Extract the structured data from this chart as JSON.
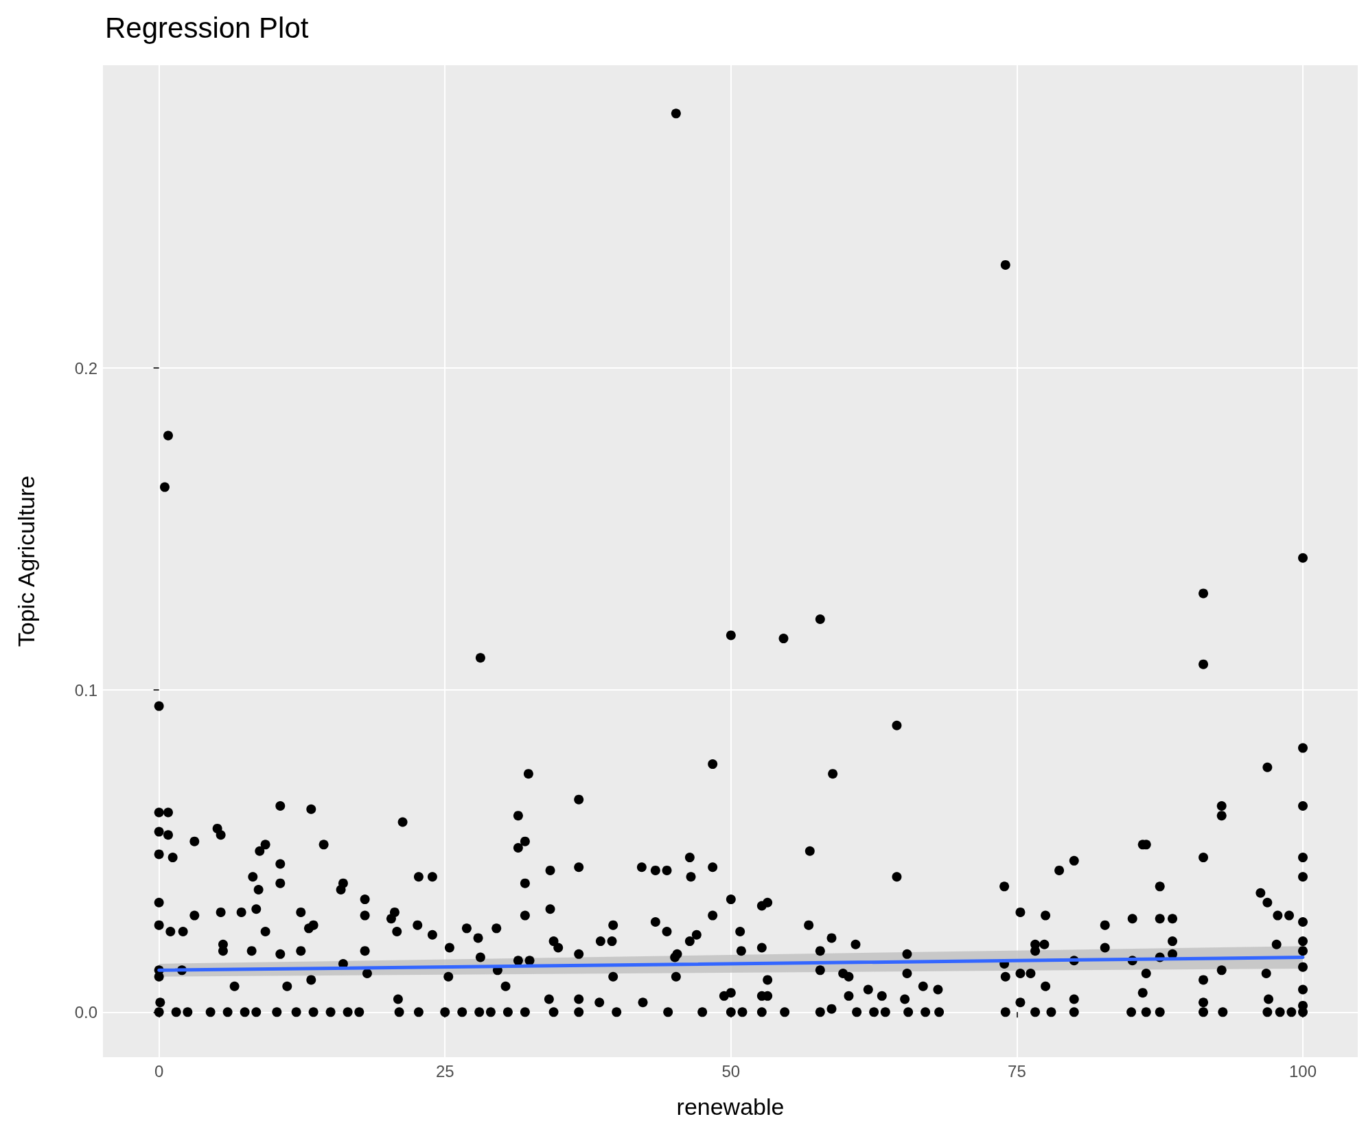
{
  "chart_data": {
    "type": "scatter",
    "title": "Regression Plot",
    "xlabel": "renewable",
    "ylabel": "Topic Agriculture",
    "xlim": [
      -4.9,
      104.8
    ],
    "ylim": [
      -0.014,
      0.294
    ],
    "xticks": [
      0,
      25,
      50,
      75,
      100
    ],
    "yticks": [
      {
        "value": 0,
        "label": "0.0"
      },
      0.1,
      0.2
    ],
    "grid": true,
    "marker": "circle",
    "series": [
      {
        "color": "#000000",
        "x": [
          45.2,
          74.0,
          0.8,
          0.5,
          100,
          57.8,
          91.3,
          50.0,
          54.6,
          28.1,
          91.3,
          0,
          64.5,
          100,
          48.4,
          96.9,
          58.9,
          32.3,
          36.7,
          10.6,
          13.3,
          92.9,
          100,
          0,
          0.8,
          31.4,
          92.9,
          21.3,
          5.1,
          5.4,
          0,
          0.8,
          3.1,
          9.3,
          8.8,
          14.4,
          32.0,
          31.4,
          86.0,
          86.3,
          56.9,
          0,
          1.2,
          46.4,
          91.3,
          100,
          80,
          10.6,
          36.7,
          48.4,
          42.2,
          43.4,
          44.4,
          34.2,
          78.7,
          22.7,
          23.9,
          46.5,
          64.5,
          100,
          8.2,
          10.6,
          16.1,
          15.9,
          32.0,
          73.9,
          87.5,
          8.7,
          96.3,
          18.0,
          50.0,
          53.2,
          52.7,
          96.9,
          0,
          12.4,
          34.2,
          75.3,
          3.1,
          5.4,
          7.2,
          8.5,
          32.0,
          48.4,
          77.5,
          85.1,
          87.5,
          88.6,
          97.8,
          98.8,
          100,
          20.6,
          18,
          20.3,
          43.4,
          13.5,
          13.1,
          22.6,
          26.9,
          29.5,
          39.7,
          56.8,
          82.7,
          0,
          1.0,
          9.3,
          20.8,
          23.9,
          44.4,
          50.8,
          2.1,
          47.0,
          46.4,
          38.6,
          39.6,
          27.9,
          58.8,
          60.9,
          88.6,
          77.4,
          82.7,
          76.6,
          76.6,
          97.7,
          100,
          52.7,
          34.5,
          34.9,
          25.4,
          5.6,
          5.6,
          8.1,
          12.4,
          18.0,
          45.3,
          45.1,
          50.9,
          57.8,
          65.4,
          88.6,
          100,
          87.5,
          36.7,
          28.1,
          10.6,
          80,
          85.1,
          73.9,
          0,
          0,
          2.0,
          16.1,
          31.4,
          32.4,
          18.2,
          25.3,
          29.6,
          39.7,
          45.2,
          57.8,
          59.8,
          60.3,
          65.4,
          74.0,
          75.3,
          76.2,
          86.3,
          91.3,
          92.9,
          96.8,
          100,
          13.3,
          53.2,
          66.8,
          77.5,
          6.6,
          11.2,
          30.3,
          86.0,
          68.1,
          100,
          49.4,
          50.0,
          52.7,
          53.2,
          60.3,
          62.0,
          63.2,
          42.3,
          34.1,
          0.1,
          20.9,
          36.7,
          65.2,
          75.3,
          91.3,
          80,
          97.0,
          38.5,
          58.8,
          100,
          0,
          1.5,
          2.5,
          4.5,
          6.0,
          7.5,
          8.5,
          10.3,
          12.0,
          13.5,
          15.0,
          16.5,
          17.5,
          21.0,
          22.7,
          25.0,
          26.5,
          28.0,
          29.0,
          30.5,
          32.0,
          34.5,
          36.7,
          40.0,
          44.5,
          47.5,
          50.0,
          51.0,
          52.7,
          54.7,
          57.8,
          61.0,
          62.5,
          63.5,
          65.5,
          67.0,
          68.2,
          74.0,
          76.6,
          78.0,
          80.0,
          85.0,
          86.3,
          87.5,
          91.3,
          93.0,
          96.9,
          98.0,
          99.0,
          100
        ],
        "values": [
          0.279,
          0.232,
          0.179,
          0.163,
          0.141,
          0.122,
          0.13,
          0.117,
          0.116,
          0.11,
          0.108,
          0.095,
          0.089,
          0.082,
          0.077,
          0.076,
          0.074,
          0.074,
          0.066,
          0.064,
          0.063,
          0.064,
          0.064,
          0.062,
          0.062,
          0.061,
          0.061,
          0.059,
          0.057,
          0.055,
          0.056,
          0.055,
          0.053,
          0.052,
          0.05,
          0.052,
          0.053,
          0.051,
          0.052,
          0.052,
          0.05,
          0.049,
          0.048,
          0.048,
          0.048,
          0.048,
          0.047,
          0.046,
          0.045,
          0.045,
          0.045,
          0.044,
          0.044,
          0.044,
          0.044,
          0.042,
          0.042,
          0.042,
          0.042,
          0.042,
          0.042,
          0.04,
          0.04,
          0.038,
          0.04,
          0.039,
          0.039,
          0.038,
          0.037,
          0.035,
          0.035,
          0.034,
          0.033,
          0.034,
          0.034,
          0.031,
          0.032,
          0.031,
          0.03,
          0.031,
          0.031,
          0.032,
          0.03,
          0.03,
          0.03,
          0.029,
          0.029,
          0.029,
          0.03,
          0.03,
          0.028,
          0.031,
          0.03,
          0.029,
          0.028,
          0.027,
          0.026,
          0.027,
          0.026,
          0.026,
          0.027,
          0.027,
          0.027,
          0.027,
          0.025,
          0.025,
          0.025,
          0.024,
          0.025,
          0.025,
          0.025,
          0.024,
          0.022,
          0.022,
          0.022,
          0.023,
          0.023,
          0.021,
          0.022,
          0.021,
          0.02,
          0.021,
          0.019,
          0.021,
          0.022,
          0.02,
          0.022,
          0.02,
          0.02,
          0.021,
          0.019,
          0.019,
          0.019,
          0.019,
          0.018,
          0.017,
          0.019,
          0.019,
          0.018,
          0.018,
          0.019,
          0.017,
          0.018,
          0.017,
          0.018,
          0.016,
          0.016,
          0.015,
          0.013,
          0.011,
          0.013,
          0.015,
          0.016,
          0.016,
          0.012,
          0.011,
          0.013,
          0.011,
          0.011,
          0.013,
          0.012,
          0.011,
          0.012,
          0.011,
          0.012,
          0.012,
          0.012,
          0.01,
          0.013,
          0.012,
          0.014,
          0.01,
          0.01,
          0.008,
          0.008,
          0.008,
          0.008,
          0.008,
          0.006,
          0.007,
          0.007,
          0.005,
          0.006,
          0.005,
          0.005,
          0.005,
          0.007,
          0.005,
          0.003,
          0.004,
          0.003,
          0.004,
          0.004,
          0.004,
          0.003,
          0.003,
          0.004,
          0.004,
          0.003,
          0.001,
          0.002,
          0,
          0,
          0,
          0,
          0,
          0,
          0,
          0,
          0,
          0,
          0,
          0,
          0,
          0,
          0,
          0,
          0,
          0,
          0,
          0,
          0,
          0,
          0,
          0,
          0,
          0,
          0,
          0,
          0,
          0,
          0,
          0,
          0,
          0,
          0,
          0,
          0,
          0,
          0,
          0,
          0,
          0,
          0,
          0,
          0,
          0,
          0,
          0,
          0,
          0
        ]
      },
      {
        "type": "line",
        "color": "#3366ff",
        "marker": "none",
        "x": [
          0,
          100
        ],
        "values": [
          0.013,
          0.017
        ],
        "lower": [
          0.011,
          0.0135
        ],
        "upper": [
          0.015,
          0.0205
        ]
      }
    ]
  }
}
